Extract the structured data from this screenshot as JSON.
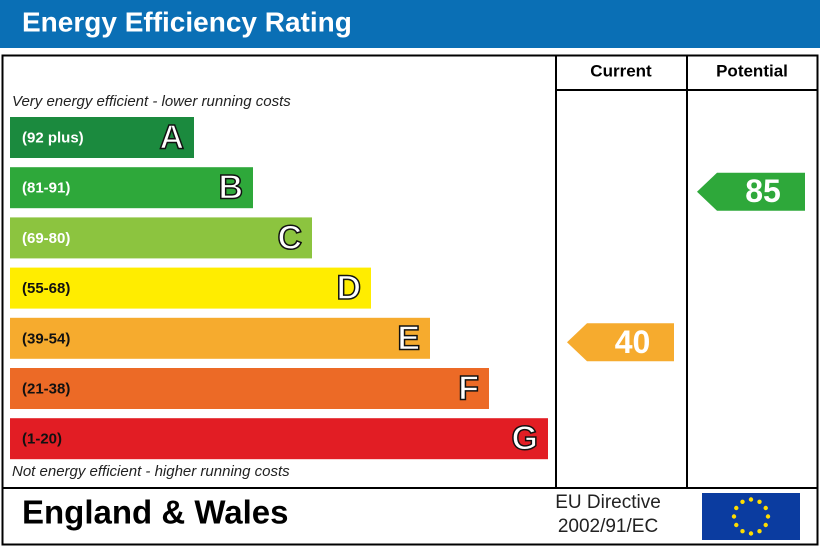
{
  "header": {
    "title": "Energy Efficiency Rating"
  },
  "columns": {
    "current": "Current",
    "potential": "Potential"
  },
  "top_note": "Very energy efficient - lower running costs",
  "bottom_note": "Not energy efficient - higher running costs",
  "bands": [
    {
      "range": "(92 plus)",
      "letter": "A",
      "color": "#1b8a3e"
    },
    {
      "range": "(81-91)",
      "letter": "B",
      "color": "#2ea83a"
    },
    {
      "range": "(69-80)",
      "letter": "C",
      "color": "#8cc43f"
    },
    {
      "range": "(55-68)",
      "letter": "D",
      "color": "#ffed00"
    },
    {
      "range": "(39-54)",
      "letter": "E",
      "color": "#f6ab2e"
    },
    {
      "range": "(21-38)",
      "letter": "F",
      "color": "#ec6a26"
    },
    {
      "range": "(1-20)",
      "letter": "G",
      "color": "#e21d24"
    }
  ],
  "current": 40,
  "potential": 85,
  "footer": {
    "region": "England & Wales",
    "directive": [
      "EU Directive",
      "2002/91/EC"
    ]
  }
}
